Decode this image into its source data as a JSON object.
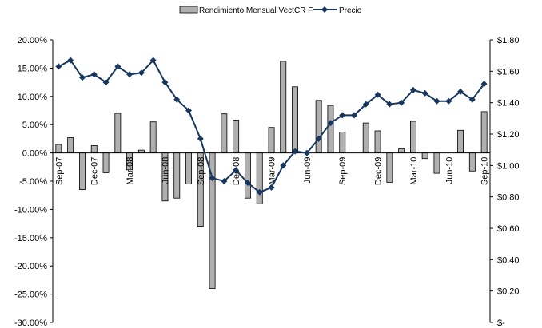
{
  "chart_data": {
    "type": "bar+line",
    "title": "",
    "categories": [
      "Sep-07",
      "Oct-07",
      "Nov-07",
      "Dec-07",
      "Jan-08",
      "Feb-08",
      "Mar-08",
      "Apr-08",
      "May-08",
      "Jun-08",
      "Jul-08",
      "Aug-08",
      "Sep-08",
      "Oct-08",
      "Nov-08",
      "Dec-08",
      "Jan-09",
      "Feb-09",
      "Mar-09",
      "Apr-09",
      "May-09",
      "Jun-09",
      "Jul-09",
      "Aug-09",
      "Sep-09",
      "Oct-09",
      "Nov-09",
      "Dec-09",
      "Jan-10",
      "Feb-10",
      "Mar-10",
      "Apr-10",
      "May-10",
      "Jun-10",
      "Jul-10",
      "Aug-10",
      "Sep-10"
    ],
    "x_tick_labels": [
      {
        "index": 0,
        "label": "Sep-07"
      },
      {
        "index": 3,
        "label": "Dec-07"
      },
      {
        "index": 6,
        "label": "Mar-08"
      },
      {
        "index": 9,
        "label": "Jun-08"
      },
      {
        "index": 12,
        "label": "Sep-08"
      },
      {
        "index": 15,
        "label": "Dec-08"
      },
      {
        "index": 18,
        "label": "Mar-09"
      },
      {
        "index": 21,
        "label": "Jun-09"
      },
      {
        "index": 24,
        "label": "Sep-09"
      },
      {
        "index": 27,
        "label": "Dec-09"
      },
      {
        "index": 30,
        "label": "Mar-10"
      },
      {
        "index": 33,
        "label": "Jun-10"
      },
      {
        "index": 36,
        "label": "Sep-10"
      }
    ],
    "series": [
      {
        "name": "Rendimiento Mensual VectCR F",
        "kind": "bar",
        "axis": "left",
        "color": "#b0b0b0",
        "values": [
          1.5,
          2.7,
          -6.5,
          1.3,
          -3.5,
          7.0,
          -3.0,
          0.5,
          5.5,
          -8.5,
          -8.0,
          -5.5,
          -13.0,
          -24.0,
          6.9,
          5.8,
          -8.0,
          -9.0,
          4.5,
          16.2,
          11.7,
          0.0,
          9.3,
          8.4,
          3.7,
          0.0,
          5.3,
          3.9,
          -5.2,
          0.7,
          5.6,
          -1.0,
          -3.6,
          0.0,
          4.0,
          -3.2,
          7.3
        ]
      },
      {
        "name": "Precio",
        "kind": "line",
        "axis": "right",
        "color": "#17375e",
        "values": [
          1.63,
          1.67,
          1.56,
          1.58,
          1.53,
          1.63,
          1.58,
          1.59,
          1.67,
          1.53,
          1.42,
          1.35,
          1.17,
          0.92,
          0.9,
          0.97,
          0.89,
          0.83,
          0.86,
          1.0,
          1.09,
          1.08,
          1.17,
          1.27,
          1.32,
          1.32,
          1.39,
          1.45,
          1.39,
          1.4,
          1.48,
          1.46,
          1.41,
          1.41,
          1.47,
          1.42,
          1.52
        ]
      }
    ],
    "y_left": {
      "min": -30,
      "max": 20,
      "step": 5,
      "tick_labels": [
        "20.00%",
        "15.00%",
        "10.00%",
        "5.00%",
        "0.00%",
        "-5.00%",
        "-10.00%",
        "-15.00%",
        "-20.00%",
        "-25.00%",
        "-30.00%"
      ]
    },
    "y_right": {
      "min": 0,
      "max": 1.8,
      "step": 0.2,
      "tick_labels": [
        "$1.80",
        "$1.60",
        "$1.40",
        "$1.20",
        "$1.00",
        "$0.80",
        "$0.60",
        "$0.40",
        "$0.20",
        "$-"
      ]
    },
    "grid": false,
    "legend_position": "top-center"
  }
}
